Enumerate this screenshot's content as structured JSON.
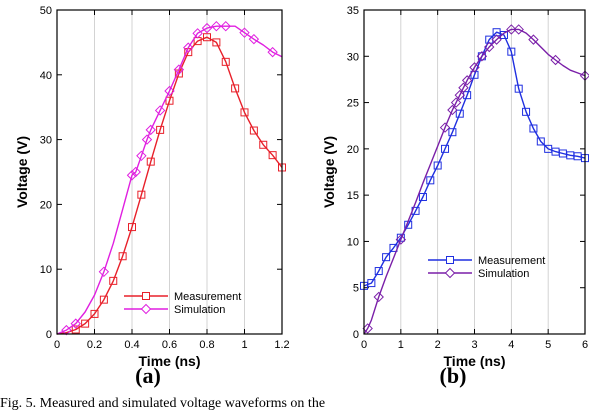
{
  "caption": "Fig. 5. Measured and simulated voltage waveforms on the",
  "chart_data": [
    {
      "type": "line",
      "panel_label": "(a)",
      "xlabel": "Time (ns)",
      "ylabel": "Voltage (V)",
      "xlim": [
        0,
        1.2
      ],
      "ylim": [
        0,
        50
      ],
      "xticks": [
        0,
        0.2,
        0.4,
        0.6,
        0.8,
        1,
        1.2
      ],
      "xtick_labels": [
        "0",
        "0.2",
        "0.4",
        "0.6",
        "0.8",
        "1",
        "1.2"
      ],
      "yticks": [
        0,
        10,
        20,
        30,
        40,
        50
      ],
      "ytick_labels": [
        "0",
        "10",
        "20",
        "30",
        "40",
        "50"
      ],
      "grid": "vertical",
      "legend_position": "bottom-right",
      "series": [
        {
          "name": "Measurement",
          "color": "#e8202a",
          "marker": "square",
          "x": [
            0,
            0.05,
            0.1,
            0.15,
            0.2,
            0.25,
            0.3,
            0.35,
            0.4,
            0.45,
            0.5,
            0.55,
            0.6,
            0.65,
            0.7,
            0.75,
            0.8,
            0.85,
            0.9,
            0.95,
            1.0,
            1.05,
            1.1,
            1.15,
            1.2
          ],
          "y": [
            0,
            0.2,
            0.7,
            1.6,
            3.1,
            5.3,
            8.2,
            12.0,
            16.5,
            21.5,
            26.6,
            31.5,
            36.0,
            40.2,
            43.5,
            45.2,
            45.8,
            45.0,
            42.0,
            37.9,
            34.2,
            31.4,
            29.2,
            27.6,
            25.7
          ],
          "marker_indices": [
            2,
            3,
            4,
            5,
            6,
            7,
            8,
            9,
            10,
            11,
            12,
            13,
            14,
            15,
            16,
            17,
            18,
            19,
            20,
            21,
            22,
            23,
            24
          ]
        },
        {
          "name": "Simulation",
          "color": "#e01fe0",
          "marker": "diamond",
          "x": [
            0,
            0.05,
            0.1,
            0.15,
            0.2,
            0.25,
            0.3,
            0.35,
            0.4,
            0.42,
            0.45,
            0.48,
            0.5,
            0.55,
            0.6,
            0.65,
            0.7,
            0.75,
            0.8,
            0.85,
            0.9,
            0.95,
            1.0,
            1.05,
            1.1,
            1.15,
            1.2
          ],
          "y": [
            0,
            0.6,
            1.6,
            3.4,
            6.0,
            9.6,
            14.0,
            19.2,
            24.5,
            25.0,
            27.5,
            30.0,
            31.5,
            34.5,
            37.5,
            40.8,
            44.2,
            46.4,
            47.2,
            47.5,
            47.5,
            47.5,
            46.5,
            45.5,
            44.6,
            43.5,
            42.8
          ],
          "marker_indices": [
            1,
            2,
            5,
            8,
            9,
            10,
            11,
            12,
            13,
            14,
            15,
            16,
            17,
            18,
            19,
            20,
            22,
            23,
            25
          ]
        }
      ]
    },
    {
      "type": "line",
      "panel_label": "(b)",
      "xlabel": "Time (ns)",
      "ylabel": "Voltage (V)",
      "xlim": [
        0,
        6
      ],
      "ylim": [
        0,
        35
      ],
      "xticks": [
        0,
        1,
        2,
        3,
        4,
        5,
        6
      ],
      "xtick_labels": [
        "0",
        "1",
        "2",
        "3",
        "4",
        "5",
        "6"
      ],
      "yticks": [
        0,
        5,
        10,
        15,
        20,
        25,
        30,
        35
      ],
      "ytick_labels": [
        "0",
        "5",
        "10",
        "15",
        "20",
        "25",
        "30",
        "35"
      ],
      "grid": "vertical",
      "legend_position": "bottom-right",
      "series": [
        {
          "name": "Measurement",
          "color": "#1f2fe0",
          "marker": "square",
          "x": [
            0,
            0.2,
            0.4,
            0.6,
            0.8,
            1.0,
            1.2,
            1.4,
            1.6,
            1.8,
            2.0,
            2.2,
            2.4,
            2.6,
            2.8,
            3.0,
            3.2,
            3.4,
            3.6,
            3.8,
            4.0,
            4.2,
            4.4,
            4.6,
            4.8,
            5.0,
            5.2,
            5.4,
            5.6,
            5.8,
            6.0
          ],
          "y": [
            5.2,
            5.5,
            6.8,
            8.3,
            9.3,
            10.4,
            11.8,
            13.3,
            14.8,
            16.6,
            18.2,
            20.0,
            21.8,
            23.8,
            25.8,
            28.0,
            30.0,
            31.8,
            32.6,
            32.3,
            30.5,
            26.5,
            24.0,
            22.2,
            20.8,
            20.0,
            19.7,
            19.5,
            19.3,
            19.2,
            19.0
          ],
          "marker_indices": [
            0,
            1,
            2,
            3,
            4,
            5,
            6,
            7,
            8,
            9,
            10,
            11,
            12,
            13,
            14,
            15,
            16,
            17,
            18,
            19,
            20,
            21,
            22,
            23,
            24,
            25,
            26,
            27,
            28,
            29,
            30
          ]
        },
        {
          "name": "Simulation",
          "color": "#7a1fa8",
          "marker": "diamond",
          "x": [
            0,
            0.1,
            0.2,
            0.4,
            0.6,
            0.8,
            1.0,
            1.2,
            1.4,
            1.6,
            1.8,
            2.0,
            2.2,
            2.4,
            2.5,
            2.6,
            2.7,
            2.8,
            3.0,
            3.2,
            3.4,
            3.6,
            3.8,
            4.0,
            4.2,
            4.4,
            4.6,
            4.8,
            5.0,
            5.2,
            5.4,
            5.6,
            5.8,
            6.0
          ],
          "y": [
            0,
            0.6,
            1.5,
            4.0,
            6.2,
            8.2,
            10.2,
            12.2,
            14.2,
            16.3,
            18.3,
            20.3,
            22.3,
            24.2,
            25.0,
            25.8,
            26.6,
            27.4,
            28.8,
            30.0,
            31.0,
            31.8,
            32.5,
            32.9,
            32.9,
            32.5,
            31.8,
            31.0,
            30.2,
            29.6,
            29.0,
            28.5,
            28.2,
            27.9
          ],
          "marker_indices": [
            1,
            3,
            6,
            12,
            13,
            14,
            15,
            16,
            17,
            18,
            19,
            20,
            21,
            23,
            24,
            26,
            29,
            33
          ]
        }
      ]
    }
  ]
}
